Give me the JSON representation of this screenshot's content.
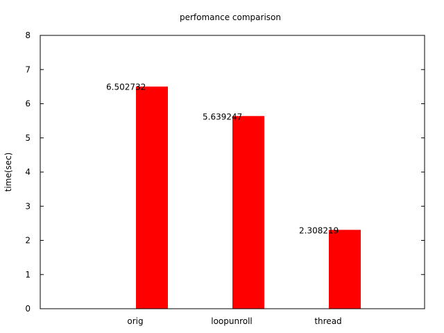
{
  "chart_data": {
    "type": "bar",
    "title": "perfomance comparison",
    "xlabel": "",
    "ylabel": "time(sec)",
    "categories": [
      "orig",
      "loopunroll",
      "thread"
    ],
    "values": [
      6.502732,
      5.639247,
      2.308219
    ],
    "value_labels": [
      "6.502732",
      "5.639247",
      "2.308219"
    ],
    "ylim": [
      0,
      8
    ],
    "yticks": [
      0,
      1,
      2,
      3,
      4,
      5,
      6,
      7,
      8
    ],
    "ytick_labels": [
      "0",
      "1",
      "2",
      "3",
      "4",
      "5",
      "6",
      "7",
      "8"
    ],
    "bar_color": "#ff0000",
    "axis_color": "#000000",
    "text_color": "#000000",
    "grid": false,
    "legend": false
  }
}
